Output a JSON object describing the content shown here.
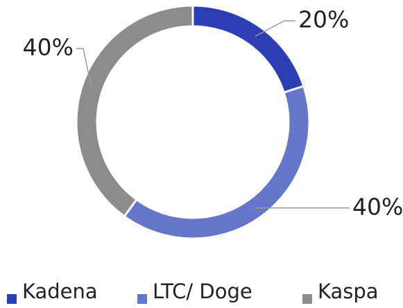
{
  "chart_data": {
    "type": "donut",
    "categories": [
      "Kadena",
      "LTC/ Doge",
      "Kaspa"
    ],
    "values": [
      20,
      40,
      40
    ],
    "value_labels": [
      "20%",
      "40%",
      "40%"
    ],
    "colors": [
      "#2b3eb4",
      "#6776c9",
      "#8c8c8c"
    ]
  }
}
